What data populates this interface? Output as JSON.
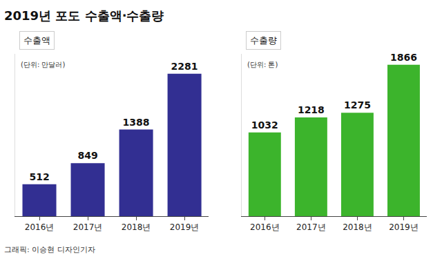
{
  "title": "2019년 포도 수출액·수출량",
  "credit": "그래픽: 이승현 디자인기자",
  "chart_data": [
    {
      "type": "bar",
      "title": "수출액",
      "subtitle": "(단위: 만달러)",
      "categories": [
        "2016년",
        "2017년",
        "2018년",
        "2019년"
      ],
      "values": [
        512,
        849,
        1388,
        2281
      ],
      "color": "#322f92",
      "ylim": [
        0,
        2600
      ],
      "data_labels": true,
      "tick_labels": "x",
      "grid": false
    },
    {
      "type": "bar",
      "title": "수출량",
      "subtitle": "(단위: 톤)",
      "categories": [
        "2016년",
        "2017년",
        "2018년",
        "2019년"
      ],
      "values": [
        1032,
        1218,
        1275,
        1866
      ],
      "color": "#3cb42c",
      "ylim": [
        0,
        2000
      ],
      "data_labels": true,
      "tick_labels": "x",
      "grid": false
    }
  ]
}
